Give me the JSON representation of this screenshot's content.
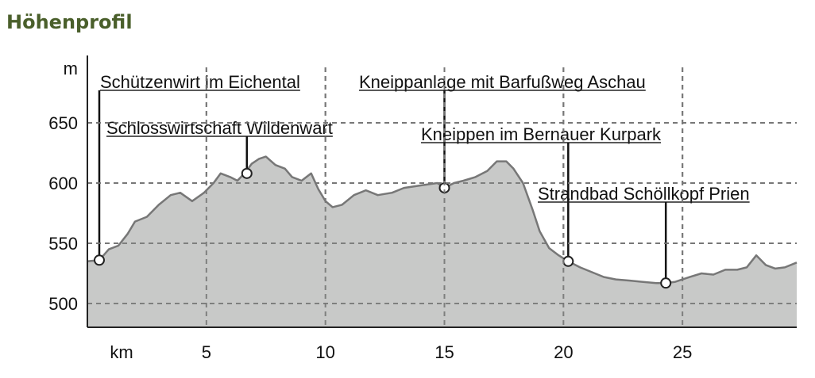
{
  "title": "Höhenprofil",
  "chart_data": {
    "type": "area",
    "title": "Höhenprofil",
    "xlabel": "km",
    "ylabel": "m",
    "xlim": [
      0,
      29.8
    ],
    "ylim": [
      480,
      700
    ],
    "x_ticks": [
      5,
      10,
      15,
      20,
      25
    ],
    "y_ticks": [
      500,
      550,
      600,
      650
    ],
    "grid": true,
    "profile": [
      [
        0,
        535
      ],
      [
        0.5,
        536
      ],
      [
        0.9,
        545
      ],
      [
        1.3,
        548
      ],
      [
        1.7,
        558
      ],
      [
        2.0,
        568
      ],
      [
        2.5,
        572
      ],
      [
        3.0,
        582
      ],
      [
        3.5,
        590
      ],
      [
        3.9,
        592
      ],
      [
        4.4,
        585
      ],
      [
        4.9,
        592
      ],
      [
        5.3,
        600
      ],
      [
        5.6,
        608
      ],
      [
        6.0,
        605
      ],
      [
        6.3,
        602
      ],
      [
        6.6,
        608
      ],
      [
        6.9,
        616
      ],
      [
        7.2,
        620
      ],
      [
        7.5,
        622
      ],
      [
        7.9,
        615
      ],
      [
        8.3,
        612
      ],
      [
        8.6,
        605
      ],
      [
        9.0,
        602
      ],
      [
        9.4,
        608
      ],
      [
        9.7,
        595
      ],
      [
        10.0,
        585
      ],
      [
        10.3,
        580
      ],
      [
        10.7,
        582
      ],
      [
        11.2,
        590
      ],
      [
        11.7,
        594
      ],
      [
        12.2,
        590
      ],
      [
        12.8,
        592
      ],
      [
        13.3,
        596
      ],
      [
        14.0,
        598
      ],
      [
        14.7,
        600
      ],
      [
        15.0,
        596
      ],
      [
        15.4,
        600
      ],
      [
        15.8,
        602
      ],
      [
        16.3,
        605
      ],
      [
        16.8,
        610
      ],
      [
        17.2,
        618
      ],
      [
        17.6,
        618
      ],
      [
        17.9,
        612
      ],
      [
        18.3,
        600
      ],
      [
        18.7,
        578
      ],
      [
        19.0,
        560
      ],
      [
        19.4,
        546
      ],
      [
        19.8,
        540
      ],
      [
        20.2,
        535
      ],
      [
        20.7,
        530
      ],
      [
        21.2,
        526
      ],
      [
        21.7,
        522
      ],
      [
        22.2,
        520
      ],
      [
        22.8,
        519
      ],
      [
        23.3,
        518
      ],
      [
        23.9,
        517
      ],
      [
        24.3,
        517
      ],
      [
        24.7,
        518
      ],
      [
        25.3,
        522
      ],
      [
        25.8,
        525
      ],
      [
        26.3,
        524
      ],
      [
        26.8,
        528
      ],
      [
        27.3,
        528
      ],
      [
        27.7,
        530
      ],
      [
        28.1,
        540
      ],
      [
        28.5,
        532
      ],
      [
        28.9,
        529
      ],
      [
        29.3,
        530
      ],
      [
        29.8,
        534
      ]
    ],
    "points_of_interest": [
      {
        "label": "Schützenwirt im Eichental",
        "km": 0.5,
        "elevation": 536
      },
      {
        "label": "Schlosswirtschaft Wildenwart",
        "km": 6.7,
        "elevation": 608
      },
      {
        "label": "Kneippanlage mit Barfußweg Aschau",
        "km": 15.0,
        "elevation": 596
      },
      {
        "label": "Kneippen im Bernauer Kurpark",
        "km": 20.2,
        "elevation": 535
      },
      {
        "label": "Strandbad Schöllkopf Prien",
        "km": 24.3,
        "elevation": 517
      }
    ],
    "colors": {
      "fill": "#c8c9c8",
      "line": "#777777",
      "grid": "#777777",
      "title": "#4a5f2b",
      "marker_fill": "#ffffff",
      "marker_stroke": "#222222"
    }
  }
}
